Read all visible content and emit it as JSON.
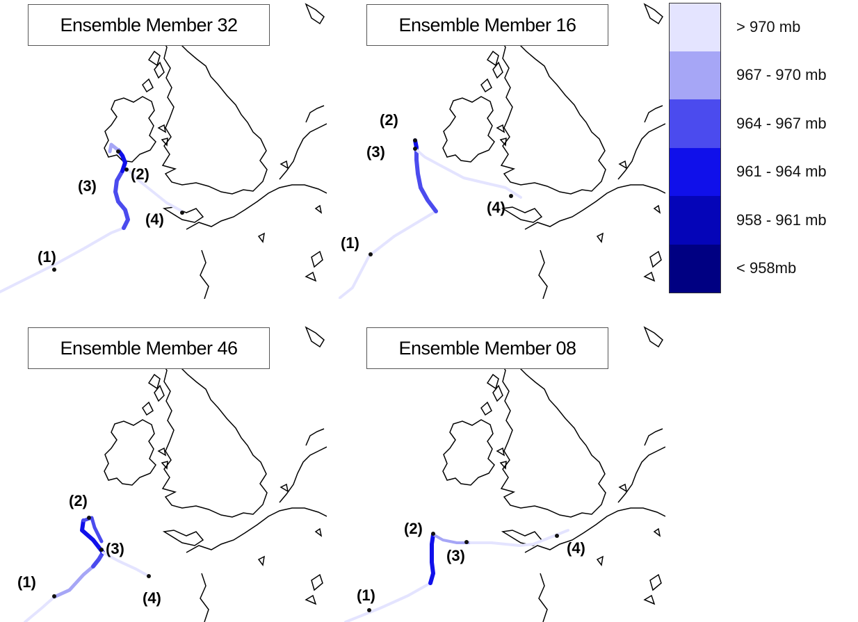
{
  "legend": {
    "items": [
      {
        "label": "> 970 mb",
        "color": "#e4e4ff"
      },
      {
        "label": "967 - 970 mb",
        "color": "#a6a6f6"
      },
      {
        "label": "964 - 967 mb",
        "color": "#4b4bee"
      },
      {
        "label": "961 - 964 mb",
        "color": "#1010ea"
      },
      {
        "label": "958 - 961 mb",
        "color": "#0505b8"
      },
      {
        "label": "< 958mb",
        "color": "#000082"
      }
    ]
  },
  "panels": [
    {
      "title": "Ensemble Member 32",
      "labels": [
        "(1)",
        "(2)",
        "(3)",
        "(4)"
      ]
    },
    {
      "title": "Ensemble Member 16",
      "labels": [
        "(1)",
        "(2)",
        "(3)",
        "(4)"
      ]
    },
    {
      "title": "Ensemble Member 46",
      "labels": [
        "(1)",
        "(2)",
        "(3)",
        "(4)"
      ]
    },
    {
      "title": "Ensemble Member 08",
      "labels": [
        "(1)",
        "(2)",
        "(3)",
        "(4)"
      ]
    }
  ]
}
